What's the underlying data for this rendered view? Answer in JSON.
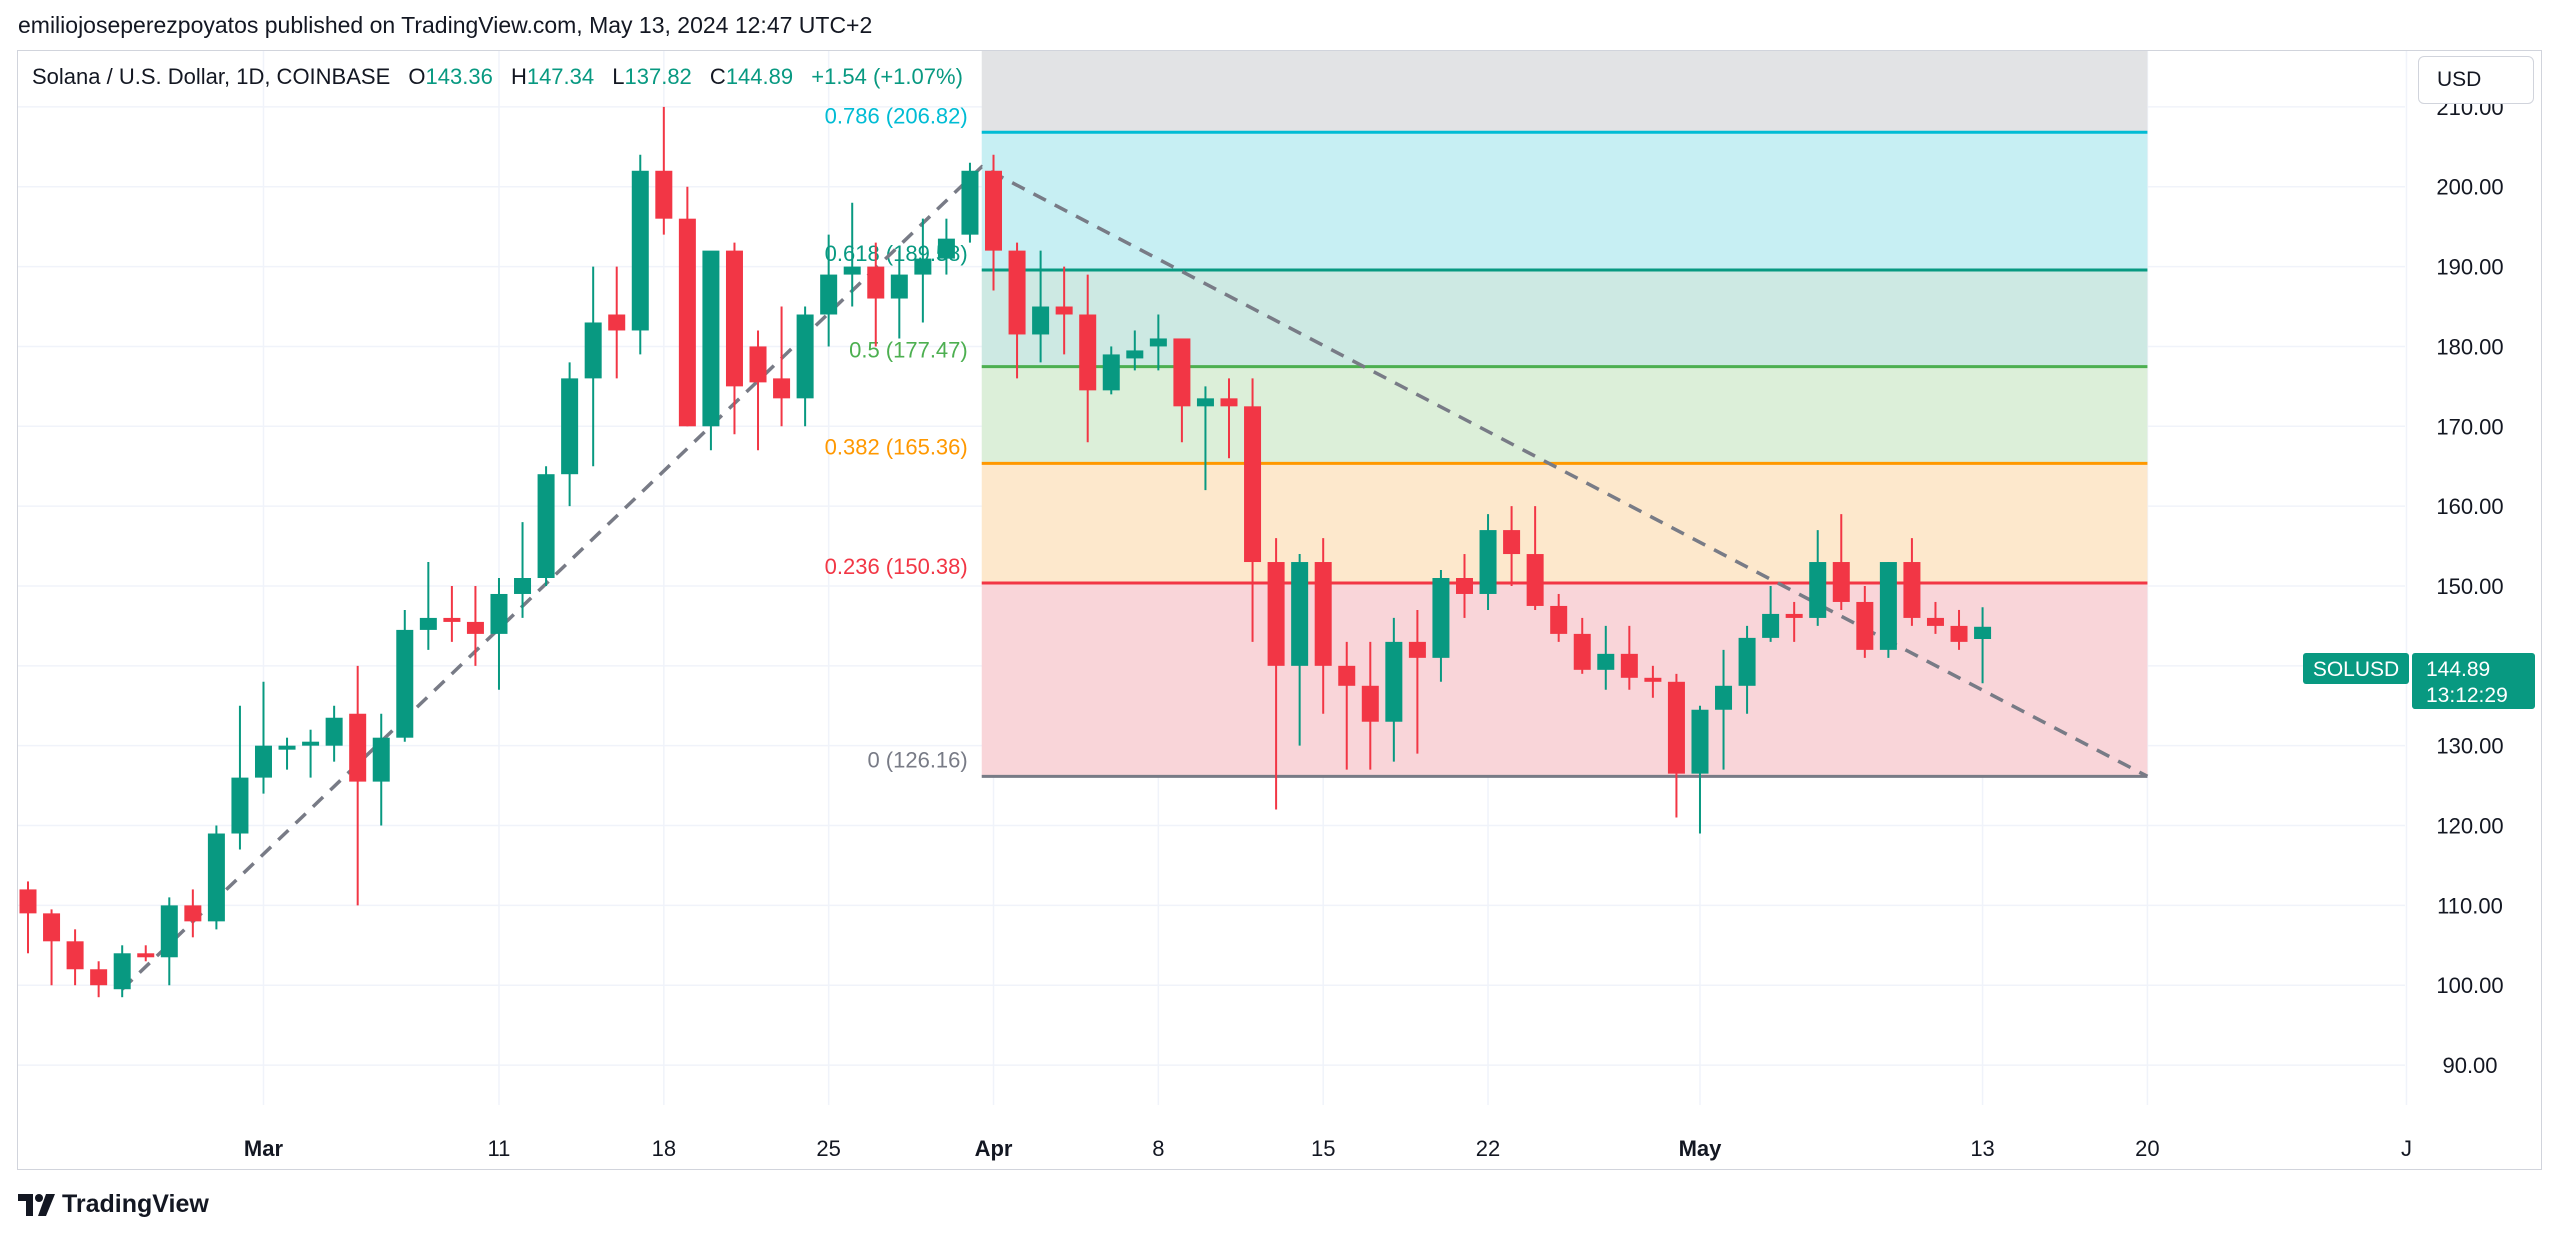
{
  "publisher_line": "emiliojoseperezpoyatos published on TradingView.com, May 13, 2024 12:47 UTC+2",
  "legend": {
    "symbol": "Solana / U.S. Dollar, 1D, COINBASE",
    "open_label": "O",
    "open": "143.36",
    "high_label": "H",
    "high": "147.34",
    "low_label": "L",
    "low": "137.82",
    "close_label": "C",
    "close": "144.89",
    "change": "+1.54 (+1.07%)"
  },
  "currency": "USD",
  "price_tag": {
    "symbol": "SOLUSD",
    "price": "144.89",
    "countdown": "13:12:29"
  },
  "footer_logo": "TradingView",
  "colors": {
    "up": "#089981",
    "down": "#f23645",
    "grid": "#f0f3fa",
    "axis_text": "#131722"
  },
  "chart_data": {
    "type": "candlestick",
    "y_range": [
      85,
      217
    ],
    "y_ticks": [
      90,
      100,
      110,
      120,
      130,
      140,
      150,
      160,
      170,
      180,
      190,
      200,
      210
    ],
    "x_ticks": [
      {
        "label": "Mar",
        "i": 19,
        "bold": true
      },
      {
        "label": "11",
        "i": 29
      },
      {
        "label": "18",
        "i": 36
      },
      {
        "label": "25",
        "i": 43
      },
      {
        "label": "Apr",
        "i": 50,
        "bold": true
      },
      {
        "label": "8",
        "i": 57
      },
      {
        "label": "15",
        "i": 64
      },
      {
        "label": "22",
        "i": 71
      },
      {
        "label": "May",
        "i": 80,
        "bold": true
      },
      {
        "label": "13",
        "i": 92
      },
      {
        "label": "20",
        "i": 99
      },
      {
        "label": "J",
        "i": 110
      }
    ],
    "candles": [
      {
        "i": 9,
        "o": 112,
        "h": 113,
        "l": 104,
        "c": 109
      },
      {
        "i": 10,
        "o": 109,
        "h": 109.5,
        "l": 100,
        "c": 105.5
      },
      {
        "i": 11,
        "o": 105.5,
        "h": 107,
        "l": 100,
        "c": 102
      },
      {
        "i": 12,
        "o": 102,
        "h": 103,
        "l": 98.5,
        "c": 100
      },
      {
        "i": 13,
        "o": 99.5,
        "h": 105,
        "l": 98.5,
        "c": 104
      },
      {
        "i": 14,
        "o": 104,
        "h": 105,
        "l": 103,
        "c": 103.5
      },
      {
        "i": 15,
        "o": 103.5,
        "h": 111,
        "l": 100,
        "c": 110
      },
      {
        "i": 16,
        "o": 110,
        "h": 112,
        "l": 106,
        "c": 108
      },
      {
        "i": 17,
        "o": 108,
        "h": 120,
        "l": 107,
        "c": 119
      },
      {
        "i": 18,
        "o": 119,
        "h": 135,
        "l": 117,
        "c": 126
      },
      {
        "i": 19,
        "o": 126,
        "h": 138,
        "l": 124,
        "c": 130
      },
      {
        "i": 20,
        "o": 129.5,
        "h": 131,
        "l": 127,
        "c": 130
      },
      {
        "i": 21,
        "o": 130,
        "h": 132,
        "l": 126,
        "c": 130.5
      },
      {
        "i": 22,
        "o": 130,
        "h": 135,
        "l": 128,
        "c": 133.5
      },
      {
        "i": 23,
        "o": 134,
        "h": 140,
        "l": 110,
        "c": 125.5
      },
      {
        "i": 24,
        "o": 125.5,
        "h": 134,
        "l": 120,
        "c": 131
      },
      {
        "i": 25,
        "o": 131,
        "h": 147,
        "l": 130.5,
        "c": 144.5
      },
      {
        "i": 26,
        "o": 144.5,
        "h": 153,
        "l": 142,
        "c": 146
      },
      {
        "i": 27,
        "o": 146,
        "h": 150,
        "l": 143,
        "c": 145.5
      },
      {
        "i": 28,
        "o": 145.5,
        "h": 150,
        "l": 140,
        "c": 144
      },
      {
        "i": 29,
        "o": 144,
        "h": 151,
        "l": 137,
        "c": 149
      },
      {
        "i": 30,
        "o": 149,
        "h": 158,
        "l": 146,
        "c": 151
      },
      {
        "i": 31,
        "o": 151,
        "h": 165,
        "l": 150,
        "c": 164
      },
      {
        "i": 32,
        "o": 164,
        "h": 178,
        "l": 160,
        "c": 176
      },
      {
        "i": 33,
        "o": 176,
        "h": 190,
        "l": 165,
        "c": 183
      },
      {
        "i": 34,
        "o": 184,
        "h": 190,
        "l": 176,
        "c": 182
      },
      {
        "i": 35,
        "o": 182,
        "h": 204,
        "l": 179,
        "c": 202
      },
      {
        "i": 36,
        "o": 202,
        "h": 210,
        "l": 194,
        "c": 196
      },
      {
        "i": 37,
        "o": 196,
        "h": 200,
        "l": 170,
        "c": 170
      },
      {
        "i": 38,
        "o": 170,
        "h": 191,
        "l": 167,
        "c": 192
      },
      {
        "i": 39,
        "o": 192,
        "h": 193,
        "l": 169,
        "c": 175
      },
      {
        "i": 40,
        "o": 180,
        "h": 182,
        "l": 167,
        "c": 175.5
      },
      {
        "i": 41,
        "o": 176,
        "h": 185,
        "l": 170,
        "c": 173.5
      },
      {
        "i": 42,
        "o": 173.5,
        "h": 185,
        "l": 170,
        "c": 184
      },
      {
        "i": 43,
        "o": 184,
        "h": 194,
        "l": 180,
        "c": 189
      },
      {
        "i": 44,
        "o": 189,
        "h": 198,
        "l": 185,
        "c": 190
      },
      {
        "i": 45,
        "o": 190,
        "h": 193,
        "l": 180,
        "c": 186
      },
      {
        "i": 46,
        "o": 186,
        "h": 192,
        "l": 181,
        "c": 189
      },
      {
        "i": 47,
        "o": 189,
        "h": 196,
        "l": 183,
        "c": 191
      },
      {
        "i": 48,
        "o": 191,
        "h": 196,
        "l": 189,
        "c": 193.5
      },
      {
        "i": 49,
        "o": 194,
        "h": 203,
        "l": 193,
        "c": 202
      },
      {
        "i": 50,
        "o": 202,
        "h": 204,
        "l": 187,
        "c": 192
      },
      {
        "i": 51,
        "o": 192,
        "h": 193,
        "l": 176,
        "c": 181.5
      },
      {
        "i": 52,
        "o": 181.5,
        "h": 192,
        "l": 178,
        "c": 185
      },
      {
        "i": 53,
        "o": 185,
        "h": 190,
        "l": 179,
        "c": 184
      },
      {
        "i": 54,
        "o": 184,
        "h": 189,
        "l": 168,
        "c": 174.5
      },
      {
        "i": 55,
        "o": 174.5,
        "h": 180,
        "l": 174,
        "c": 179
      },
      {
        "i": 56,
        "o": 178.5,
        "h": 182,
        "l": 177,
        "c": 179.5
      },
      {
        "i": 57,
        "o": 180,
        "h": 184,
        "l": 177,
        "c": 181
      },
      {
        "i": 58,
        "o": 181,
        "h": 181,
        "l": 168,
        "c": 172.5
      },
      {
        "i": 59,
        "o": 172.5,
        "h": 175,
        "l": 162,
        "c": 173.5
      },
      {
        "i": 60,
        "o": 173.5,
        "h": 176,
        "l": 166,
        "c": 172.5
      },
      {
        "i": 61,
        "o": 172.5,
        "h": 176,
        "l": 143,
        "c": 153
      },
      {
        "i": 62,
        "o": 153,
        "h": 156,
        "l": 122,
        "c": 140
      },
      {
        "i": 63,
        "o": 140,
        "h": 154,
        "l": 130,
        "c": 153
      },
      {
        "i": 64,
        "o": 153,
        "h": 156,
        "l": 134,
        "c": 140
      },
      {
        "i": 65,
        "o": 140,
        "h": 143,
        "l": 127,
        "c": 137.5
      },
      {
        "i": 66,
        "o": 137.5,
        "h": 143,
        "l": 127,
        "c": 133
      },
      {
        "i": 67,
        "o": 133,
        "h": 146,
        "l": 128,
        "c": 143
      },
      {
        "i": 68,
        "o": 143,
        "h": 147,
        "l": 129,
        "c": 141
      },
      {
        "i": 69,
        "o": 141,
        "h": 152,
        "l": 138,
        "c": 151
      },
      {
        "i": 70,
        "o": 151,
        "h": 154,
        "l": 146,
        "c": 149
      },
      {
        "i": 71,
        "o": 149,
        "h": 159,
        "l": 147,
        "c": 157
      },
      {
        "i": 72,
        "o": 157,
        "h": 160,
        "l": 150,
        "c": 154
      },
      {
        "i": 73,
        "o": 154,
        "h": 160,
        "l": 147,
        "c": 147.5
      },
      {
        "i": 74,
        "o": 147.5,
        "h": 149,
        "l": 143,
        "c": 144
      },
      {
        "i": 75,
        "o": 144,
        "h": 146,
        "l": 139,
        "c": 139.5
      },
      {
        "i": 76,
        "o": 139.5,
        "h": 145,
        "l": 137,
        "c": 141.5
      },
      {
        "i": 77,
        "o": 141.5,
        "h": 145,
        "l": 137,
        "c": 138.5
      },
      {
        "i": 78,
        "o": 138.5,
        "h": 140,
        "l": 136,
        "c": 138
      },
      {
        "i": 79,
        "o": 138,
        "h": 139,
        "l": 121,
        "c": 126.5
      },
      {
        "i": 80,
        "o": 126.5,
        "h": 135,
        "l": 119,
        "c": 134.5
      },
      {
        "i": 81,
        "o": 134.5,
        "h": 142,
        "l": 127,
        "c": 137.5
      },
      {
        "i": 82,
        "o": 137.5,
        "h": 145,
        "l": 134,
        "c": 143.5
      },
      {
        "i": 83,
        "o": 143.5,
        "h": 150,
        "l": 143,
        "c": 146.5
      },
      {
        "i": 84,
        "o": 146.5,
        "h": 148,
        "l": 143,
        "c": 146
      },
      {
        "i": 85,
        "o": 146,
        "h": 157,
        "l": 145,
        "c": 153
      },
      {
        "i": 86,
        "o": 153,
        "h": 159,
        "l": 147,
        "c": 148
      },
      {
        "i": 87,
        "o": 148,
        "h": 150,
        "l": 141,
        "c": 142
      },
      {
        "i": 88,
        "o": 142,
        "h": 153,
        "l": 141,
        "c": 153
      },
      {
        "i": 89,
        "o": 153,
        "h": 156,
        "l": 145,
        "c": 146
      },
      {
        "i": 90,
        "o": 146,
        "h": 148,
        "l": 144,
        "c": 145
      },
      {
        "i": 91,
        "o": 145,
        "h": 147,
        "l": 142,
        "c": 143
      },
      {
        "i": 92,
        "o": 143.36,
        "h": 147.34,
        "l": 137.82,
        "c": 144.89
      }
    ],
    "fib_levels": [
      {
        "level": "0.786",
        "value": 206.82,
        "label": "0.786 (206.82)",
        "color": "#00bcd4",
        "fill": "#c7eff3"
      },
      {
        "level": "0.618",
        "value": 189.58,
        "label": "0.618 (189.58)",
        "color": "#089981",
        "fill": "#cde9e3"
      },
      {
        "level": "0.5",
        "value": 177.47,
        "label": "0.5 (177.47)",
        "color": "#4caf50",
        "fill": "#dcefd9"
      },
      {
        "level": "0.382",
        "value": 165.36,
        "label": "0.382 (165.36)",
        "color": "#ff9800",
        "fill": "#fde8cc"
      },
      {
        "level": "0.236",
        "value": 150.38,
        "label": "0.236 (150.38)",
        "color": "#f23645",
        "fill": "#f9d5d9"
      },
      {
        "level": "0",
        "value": 126.16,
        "label": "0 (126.16)",
        "color": "#787b86",
        "fill": ""
      }
    ],
    "fib_range": {
      "i_start": 49.5,
      "i_end": 99,
      "top_fill": "#e2e3e5"
    },
    "trend_line": [
      {
        "i": 13,
        "v": 99.5
      },
      {
        "i": 49.5,
        "v": 202.5
      },
      {
        "i": 99,
        "v": 126.16
      }
    ]
  }
}
